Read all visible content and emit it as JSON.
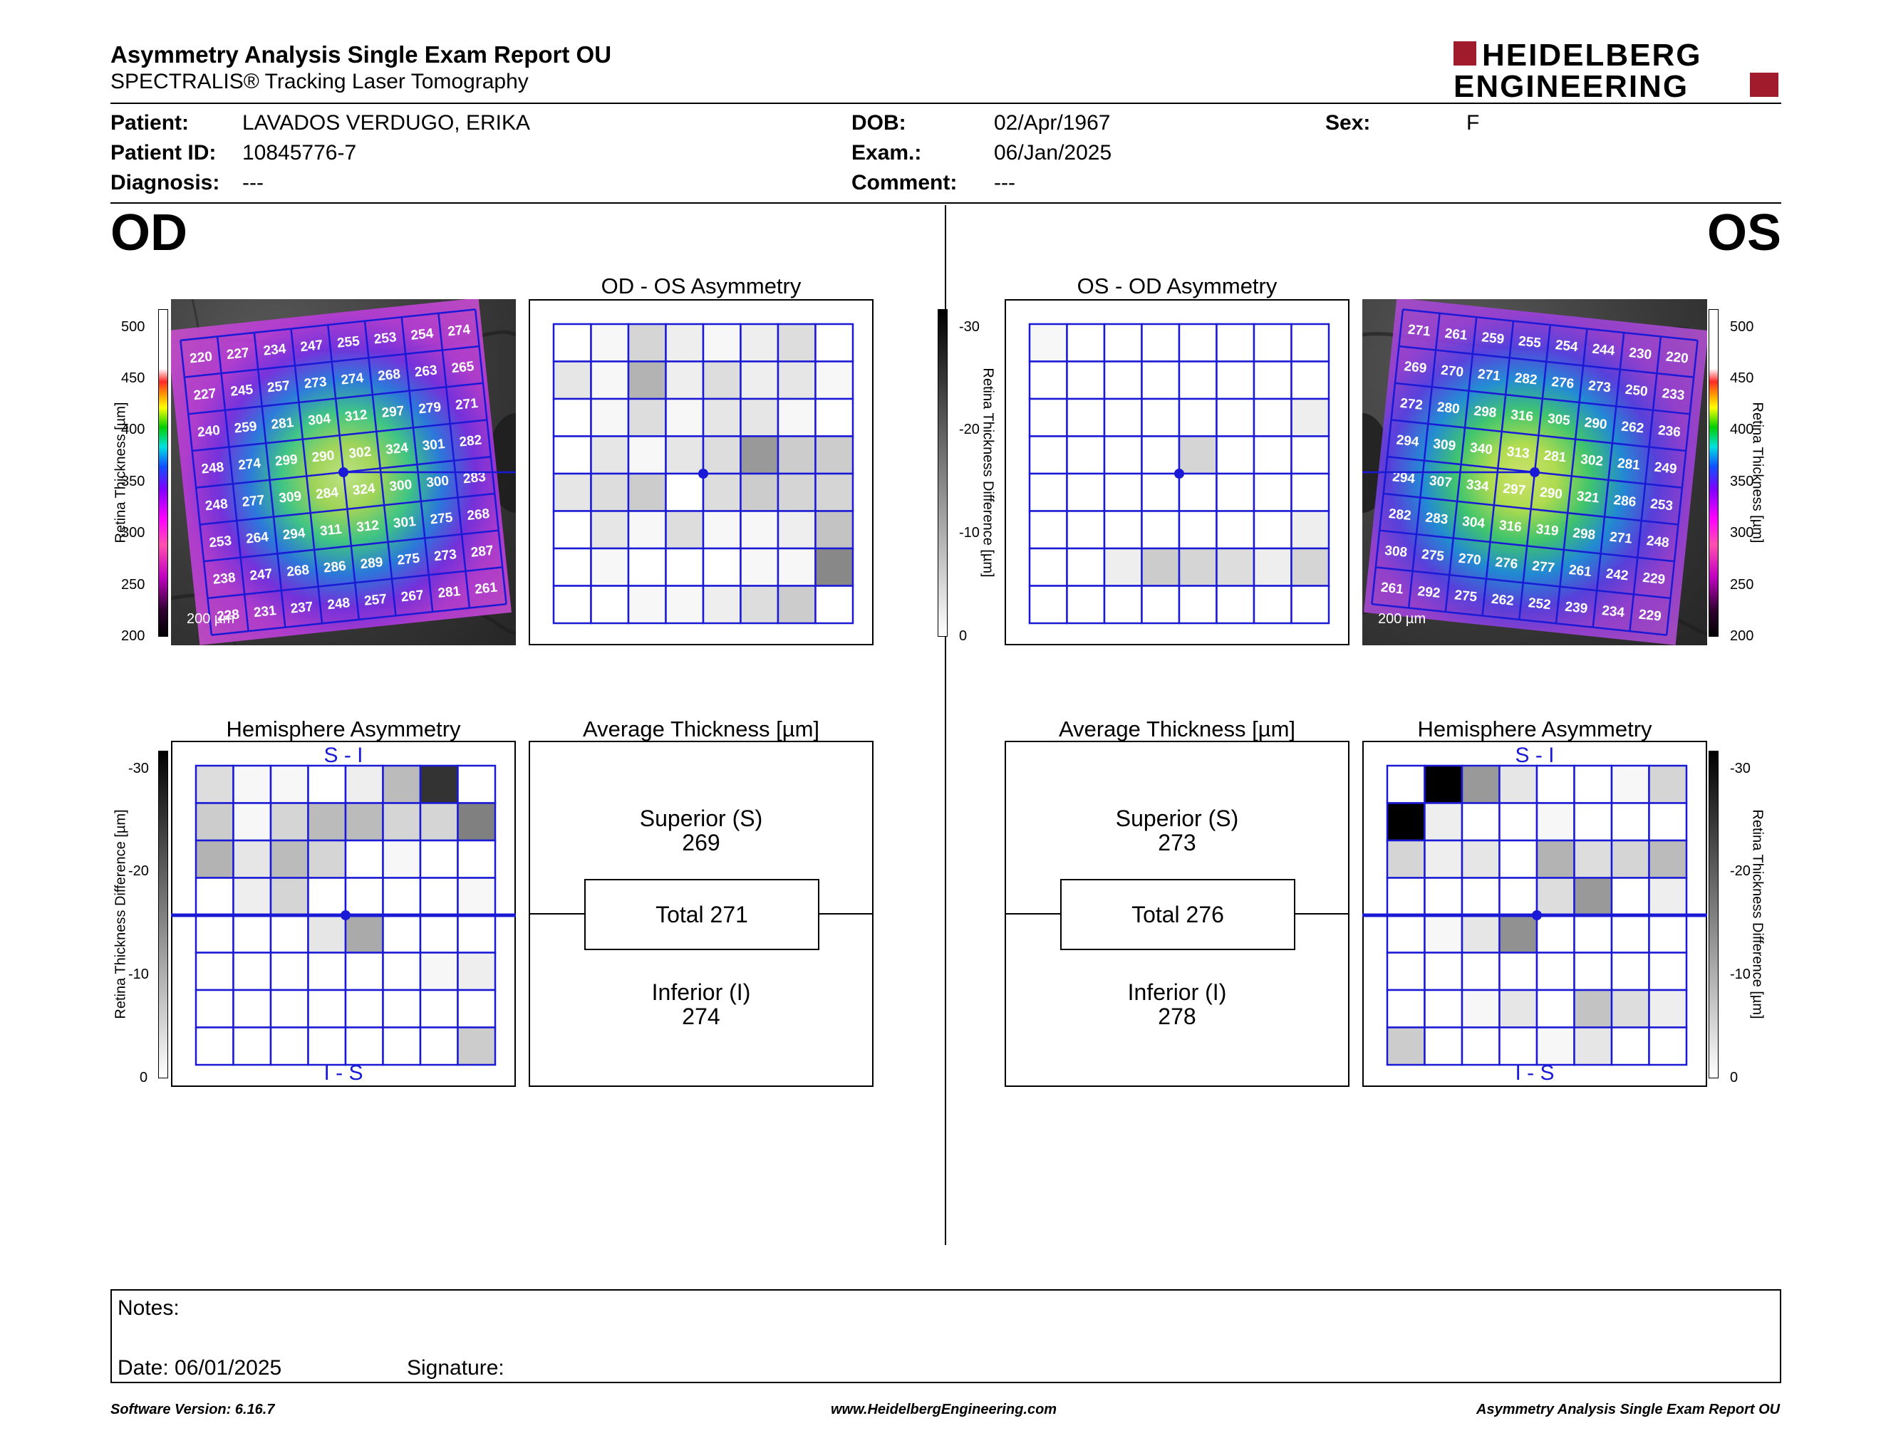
{
  "header": {
    "title": "Asymmetry Analysis Single Exam Report OU",
    "subtitle": "SPECTRALIS® Tracking Laser Tomography",
    "logo_line1": "HEIDELBERG",
    "logo_line2": "ENGINEERING"
  },
  "patient": {
    "patient_label": "Patient:",
    "patient_value": "LAVADOS VERDUGO, ERIKA",
    "id_label": "Patient ID:",
    "id_value": "10845776-7",
    "diagnosis_label": "Diagnosis:",
    "diagnosis_value": "---",
    "dob_label": "DOB:",
    "dob_value": "02/Apr/1967",
    "exam_label": "Exam.:",
    "exam_value": "06/Jan/2025",
    "comment_label": "Comment:",
    "comment_value": "---",
    "sex_label": "Sex:",
    "sex_value": "F"
  },
  "od": {
    "eye_label": "OD",
    "asym_title": "OD - OS Asymmetry",
    "hemi_title": "Hemisphere Asymmetry",
    "avg_title": "Average Thickness [µm]",
    "superior_label": "Superior (S)",
    "superior_value": "269",
    "total_label": "Total 271",
    "inferior_label": "Inferior (I)",
    "inferior_value": "274",
    "scale_bar": "200 µm",
    "thickness": [
      [
        220,
        227,
        234,
        247,
        255,
        253,
        254,
        274
      ],
      [
        227,
        245,
        257,
        273,
        274,
        268,
        263,
        265
      ],
      [
        240,
        259,
        281,
        304,
        312,
        297,
        279,
        271
      ],
      [
        248,
        274,
        299,
        290,
        302,
        324,
        301,
        282
      ],
      [
        248,
        277,
        309,
        284,
        324,
        300,
        300,
        283
      ],
      [
        253,
        264,
        294,
        311,
        312,
        301,
        275,
        268
      ],
      [
        238,
        247,
        268,
        286,
        289,
        275,
        273,
        287
      ],
      [
        228,
        231,
        237,
        248,
        257,
        267,
        281,
        261
      ]
    ],
    "asym_grid": [
      [
        0,
        1,
        5,
        2,
        1,
        2,
        4,
        0
      ],
      [
        3,
        1,
        9,
        2,
        4,
        2,
        3,
        1
      ],
      [
        0,
        1,
        4,
        1,
        3,
        3,
        1,
        0
      ],
      [
        0,
        3,
        1,
        3,
        4,
        12,
        6,
        6
      ],
      [
        3,
        4,
        6,
        0,
        4,
        6,
        5,
        5
      ],
      [
        0,
        3,
        1,
        4,
        1,
        1,
        2,
        7
      ],
      [
        0,
        1,
        0,
        0,
        0,
        1,
        1,
        14
      ],
      [
        0,
        0,
        1,
        1,
        2,
        4,
        6,
        0
      ]
    ],
    "hemi_grid": [
      [
        4,
        1,
        1,
        0,
        2,
        8,
        24,
        0
      ],
      [
        6,
        1,
        5,
        8,
        8,
        5,
        5,
        15
      ],
      [
        9,
        3,
        8,
        5,
        0,
        1,
        0,
        0
      ],
      [
        0,
        2,
        5,
        0,
        0,
        0,
        0,
        1
      ],
      [
        0,
        0,
        0,
        3,
        10,
        0,
        0,
        0
      ],
      [
        0,
        0,
        0,
        0,
        0,
        0,
        1,
        2
      ],
      [
        0,
        0,
        0,
        0,
        0,
        0,
        0,
        0
      ],
      [
        0,
        0,
        0,
        0,
        0,
        0,
        0,
        6
      ]
    ],
    "hemi_top": "S - I",
    "hemi_bottom": "I - S"
  },
  "os": {
    "eye_label": "OS",
    "asym_title": "OS - OD Asymmetry",
    "hemi_title": "Hemisphere Asymmetry",
    "avg_title": "Average Thickness [µm]",
    "superior_label": "Superior (S)",
    "superior_value": "273",
    "total_label": "Total 276",
    "inferior_label": "Inferior (I)",
    "inferior_value": "278",
    "scale_bar": "200 µm",
    "thickness": [
      [
        271,
        261,
        259,
        255,
        254,
        244,
        230,
        220
      ],
      [
        269,
        270,
        271,
        282,
        276,
        273,
        250,
        233
      ],
      [
        272,
        280,
        298,
        316,
        305,
        290,
        262,
        236
      ],
      [
        294,
        309,
        340,
        313,
        281,
        302,
        281,
        249
      ],
      [
        294,
        307,
        334,
        297,
        290,
        321,
        286,
        253
      ],
      [
        282,
        283,
        304,
        316,
        319,
        298,
        271,
        248
      ],
      [
        308,
        275,
        270,
        276,
        277,
        261,
        242,
        229
      ],
      [
        261,
        292,
        275,
        262,
        252,
        239,
        234,
        229
      ]
    ],
    "asym_grid": [
      [
        1,
        0,
        0,
        0,
        0,
        0,
        0,
        0
      ],
      [
        0,
        0,
        0,
        0,
        0,
        0,
        0,
        0
      ],
      [
        0,
        0,
        0,
        0,
        0,
        0,
        0,
        2
      ],
      [
        0,
        0,
        0,
        0,
        5,
        0,
        0,
        0
      ],
      [
        0,
        0,
        0,
        0,
        0,
        0,
        0,
        0
      ],
      [
        0,
        0,
        0,
        0,
        0,
        0,
        0,
        2
      ],
      [
        0,
        0,
        2,
        6,
        5,
        4,
        2,
        5
      ],
      [
        0,
        0,
        0,
        0,
        0,
        0,
        0,
        0
      ]
    ],
    "hemi_grid": [
      [
        0,
        30,
        12,
        3,
        0,
        0,
        1,
        5
      ],
      [
        30,
        2,
        0,
        0,
        1,
        0,
        0,
        0
      ],
      [
        5,
        2,
        3,
        0,
        9,
        4,
        5,
        8
      ],
      [
        0,
        0,
        0,
        0,
        4,
        12,
        0,
        2
      ],
      [
        0,
        1,
        3,
        13,
        0,
        0,
        0,
        0
      ],
      [
        0,
        0,
        0,
        0,
        0,
        0,
        0,
        0
      ],
      [
        0,
        0,
        1,
        3,
        0,
        7,
        4,
        2
      ],
      [
        6,
        0,
        0,
        0,
        1,
        3,
        0,
        0
      ]
    ],
    "hemi_top": "S - I",
    "hemi_bottom": "I - S"
  },
  "scales": {
    "thickness_label": "Retina Thickness [µm]",
    "thickness_ticks": [
      "500",
      "450",
      "400",
      "350",
      "300",
      "250",
      "200"
    ],
    "diff_label": "Retina Thickness Difference [µm]",
    "diff_ticks": [
      "-30",
      "-20",
      "-10",
      "0"
    ]
  },
  "notes": {
    "notes_label": "Notes:",
    "date_label": "Date: 06/01/2025",
    "signature_label": "Signature:"
  },
  "footer": {
    "software": "Software Version: 6.16.7",
    "website": "www.HeidelbergEngineering.com",
    "report_name": "Asymmetry Analysis Single Exam Report OU"
  },
  "colors": {
    "grid_blue": "#1a1ad6",
    "logo_red": "#a01c2c"
  }
}
